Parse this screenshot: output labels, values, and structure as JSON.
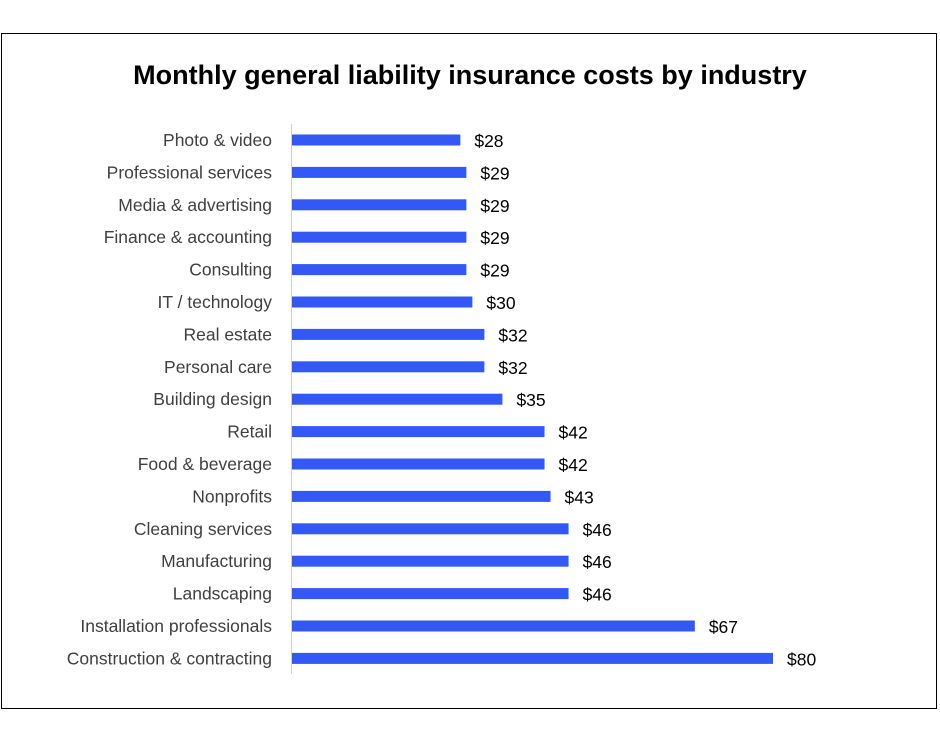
{
  "chart_data": {
    "type": "bar",
    "orientation": "horizontal",
    "title": "Monthly general liability insurance costs by industry",
    "xlabel": "",
    "ylabel": "",
    "categories": [
      "Photo & video",
      "Professional services",
      "Media & advertising",
      "Finance & accounting",
      "Consulting",
      "IT / technology",
      "Real estate",
      "Personal care",
      "Building design",
      "Retail",
      "Food & beverage",
      "Nonprofits",
      "Cleaning services",
      "Manufacturing",
      "Landscaping",
      "Installation professionals",
      "Construction & contracting"
    ],
    "values": [
      28,
      29,
      29,
      29,
      29,
      30,
      32,
      32,
      35,
      42,
      42,
      43,
      46,
      46,
      46,
      67,
      80
    ],
    "data_labels": [
      "$28",
      "$29",
      "$29",
      "$29",
      "$29",
      "$30",
      "$32",
      "$32",
      "$35",
      "$42",
      "$42",
      "$43",
      "$46",
      "$46",
      "$46",
      "$67",
      "$80"
    ],
    "xlim": [
      0,
      80
    ],
    "grid": false,
    "legend": "none",
    "bar_color": "#3358F5"
  }
}
